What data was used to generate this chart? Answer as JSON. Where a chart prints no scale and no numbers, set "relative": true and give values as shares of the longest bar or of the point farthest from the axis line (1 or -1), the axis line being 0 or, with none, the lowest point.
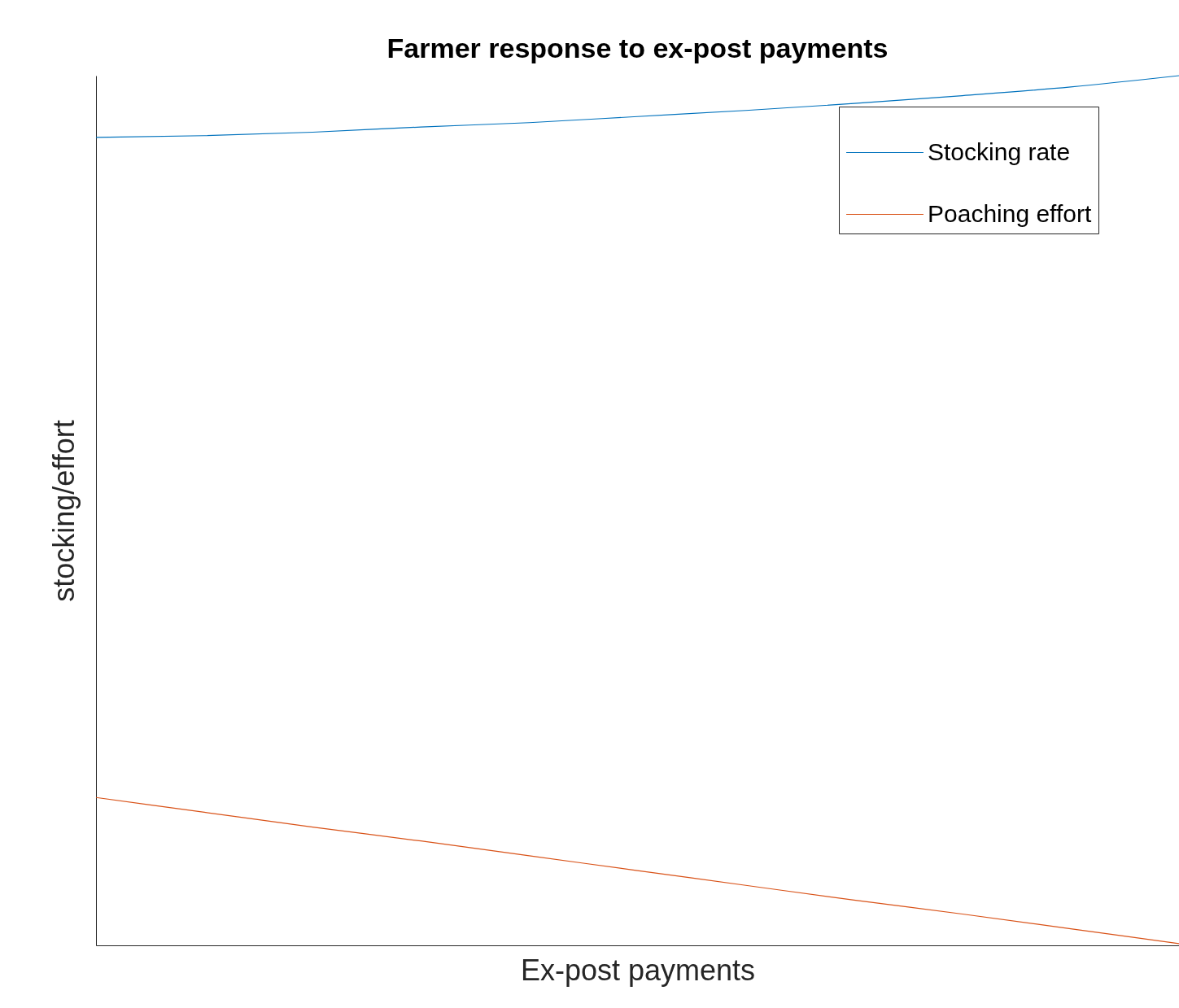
{
  "chart_data": {
    "type": "line",
    "title": "Farmer response to ex-post payments",
    "xlabel": "Ex-post payments",
    "ylabel": "stocking/effort",
    "relative": true,
    "legend": "top right",
    "categories": [
      null,
      null,
      null,
      null,
      null,
      null,
      null,
      null,
      null,
      null,
      null
    ],
    "series": [
      {
        "name": "Stocking rate",
        "color": "#0072bd",
        "values": [
          0.929,
          0.931,
          0.935,
          0.941,
          0.946,
          0.953,
          0.96,
          0.968,
          0.977,
          0.987,
          1.0
        ]
      },
      {
        "name": "Poaching effort",
        "color": "#d95319",
        "values": [
          0.17,
          0.153,
          0.136,
          0.12,
          0.103,
          0.086,
          0.069,
          0.052,
          0.036,
          0.019,
          0.002
        ]
      }
    ]
  }
}
